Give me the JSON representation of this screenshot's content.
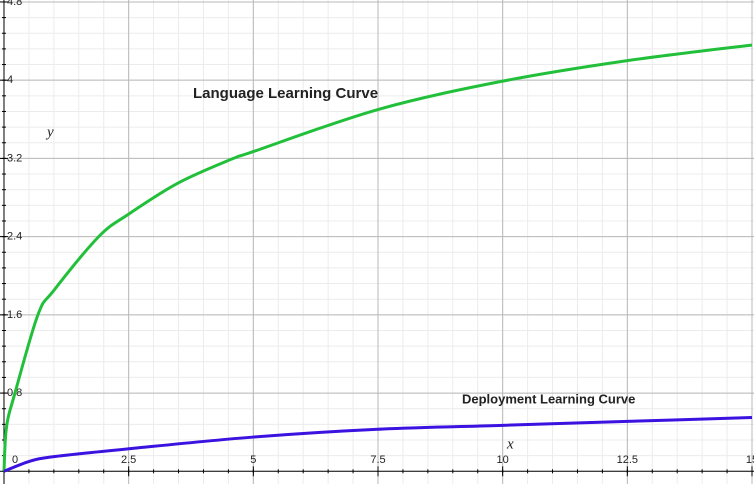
{
  "chart_data": {
    "type": "line",
    "x_label": "x",
    "y_label": "y",
    "annotations": [
      {
        "text": "Language Learning Curve",
        "color": "#1b6e1f"
      },
      {
        "text": "Deployment Learning Curve",
        "color": "#1c1a70"
      }
    ],
    "series": [
      {
        "name": "Language Learning Curve",
        "color": "#22c03a",
        "x": [
          0,
          0.05,
          0.22,
          0.68,
          1,
          1.9,
          2.5,
          3.5,
          4.6,
          5,
          7.5,
          10,
          12.5,
          15
        ],
        "values": [
          0,
          0.45,
          0.8,
          1.6,
          1.85,
          2.4,
          2.63,
          2.95,
          3.2,
          3.27,
          3.7,
          3.99,
          4.2,
          4.36
        ]
      },
      {
        "name": "Deployment Learning Curve",
        "color": "#3b12e0",
        "x": [
          0,
          0.5,
          1,
          2.5,
          5,
          7.5,
          10,
          12.5,
          15
        ],
        "values": [
          0,
          0.1,
          0.15,
          0.23,
          0.35,
          0.43,
          0.47,
          0.51,
          0.55
        ]
      }
    ],
    "xlim": [
      -0.08,
      15.04
    ],
    "ylim": [
      -0.13,
      4.82
    ],
    "xticks": [
      0,
      2.5,
      5,
      7.5,
      10,
      12.5,
      15
    ],
    "yticks": [
      0.8,
      1.6,
      2.4,
      3.2,
      4,
      4.8
    ],
    "grid": true
  }
}
